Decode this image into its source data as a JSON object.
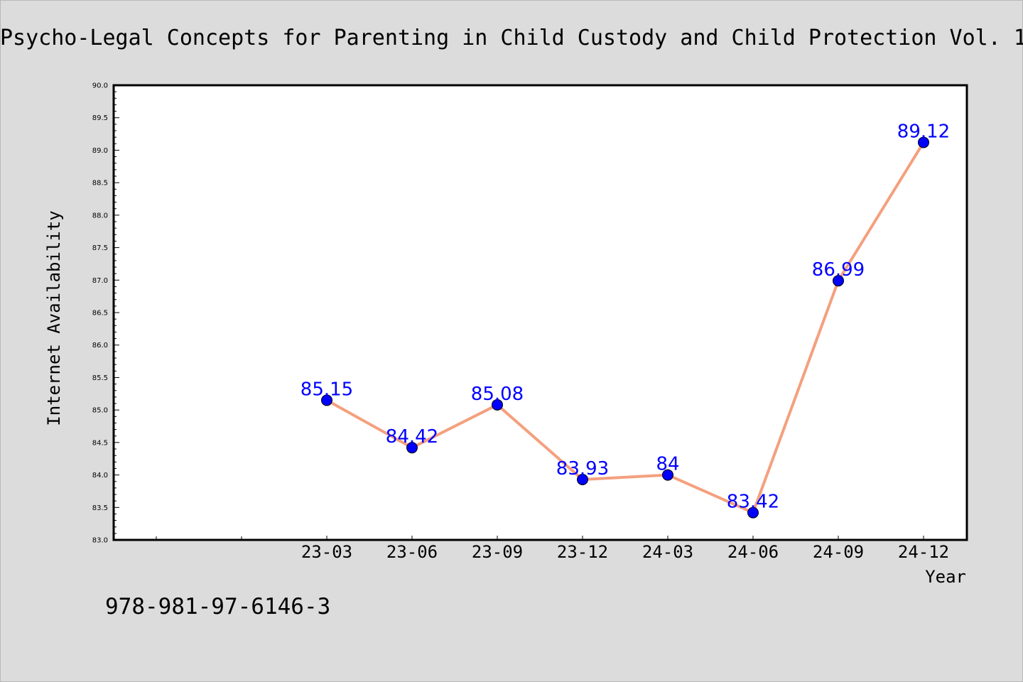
{
  "chart_data": {
    "type": "line",
    "title": "Psycho-Legal Concepts for Parenting in Child Custody and Child Protection Vol. 1",
    "xlabel": "Year",
    "ylabel": "Internet Availability",
    "categories": [
      "23-03",
      "23-06",
      "23-09",
      "23-12",
      "24-03",
      "24-06",
      "24-09",
      "24-12"
    ],
    "series": [
      {
        "values": [
          85.15,
          84.42,
          85.08,
          83.93,
          84.0,
          83.42,
          86.99,
          89.12
        ],
        "data_labels": [
          "85.15",
          "84.42",
          "85.08",
          "83.93",
          "84",
          "83.42",
          "86.99",
          "89.12"
        ],
        "line_color": "#f4a07e",
        "marker_color": "#0000ff"
      }
    ],
    "ylim": [
      83.0,
      90.0
    ],
    "yticks": [
      "83.0",
      "83.5",
      "84.0",
      "84.5",
      "85.0",
      "85.5",
      "86.0",
      "86.5",
      "87.0",
      "87.5",
      "88.0",
      "88.5",
      "89.0",
      "89.5",
      "90.0"
    ],
    "grid": false,
    "legend": "none"
  },
  "footer": {
    "isbn": "978-981-97-6146-3"
  },
  "colors": {
    "background": "#dcdcdc",
    "plot_background": "#ffffff",
    "data_label": "#0000ff"
  }
}
